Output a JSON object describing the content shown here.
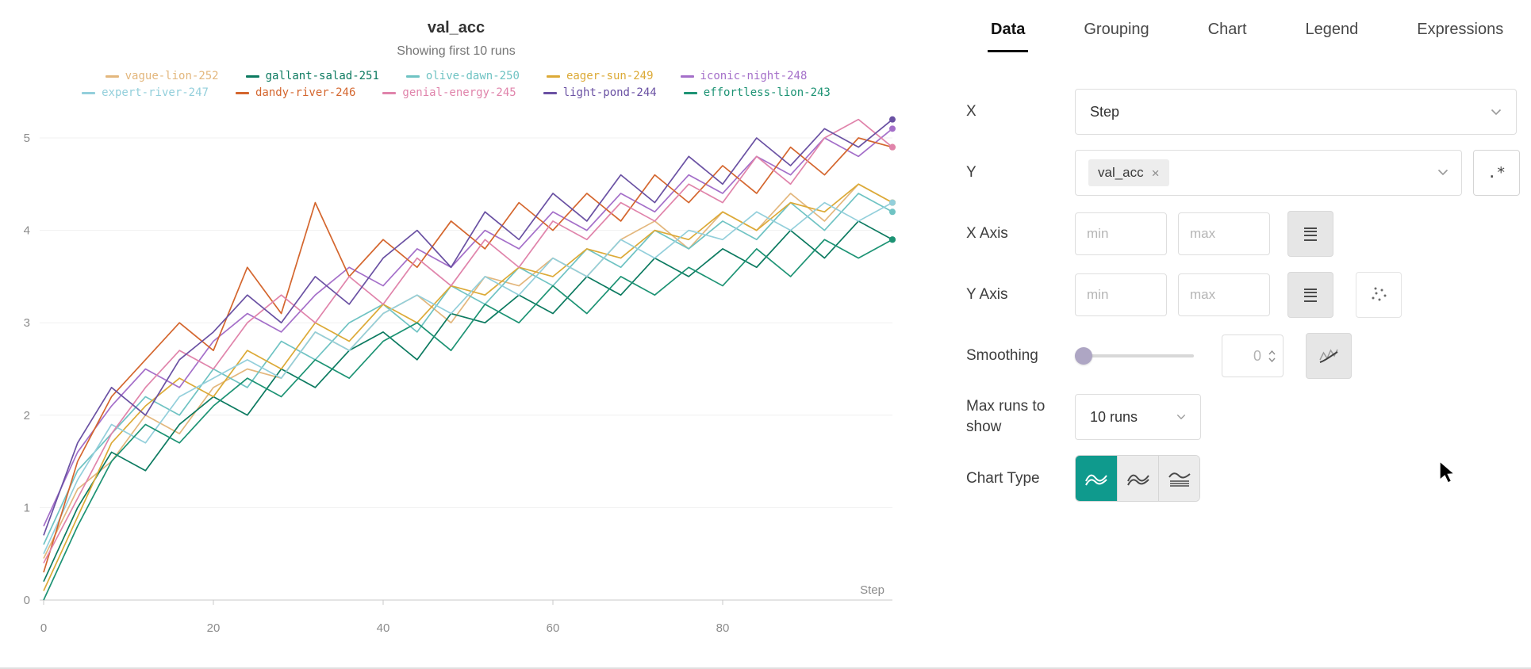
{
  "chart_data": {
    "type": "line",
    "title": "val_acc",
    "subtitle": "Showing first 10 runs",
    "xlabel": "Step",
    "ylabel": "",
    "xlim": [
      0,
      100
    ],
    "ylim": [
      0,
      5.3
    ],
    "x_ticks": [
      0,
      20,
      40,
      60,
      80
    ],
    "y_ticks": [
      0,
      1,
      2,
      3,
      4,
      5
    ],
    "grid": "horizontal",
    "legend_position": "top",
    "x": [
      0,
      4,
      8,
      12,
      16,
      20,
      24,
      28,
      32,
      36,
      40,
      44,
      48,
      52,
      56,
      60,
      64,
      68,
      72,
      76,
      80,
      84,
      88,
      92,
      96,
      100
    ],
    "series": [
      {
        "name": "vague-lion-252",
        "color": "#e3b77d",
        "values": [
          0.45,
          1.2,
          1.5,
          2.0,
          1.8,
          2.3,
          2.5,
          2.4,
          2.9,
          2.7,
          3.1,
          3.3,
          3.0,
          3.5,
          3.4,
          3.7,
          3.5,
          3.9,
          4.1,
          3.8,
          4.2,
          4.0,
          4.4,
          4.1,
          4.5,
          4.3
        ]
      },
      {
        "name": "gallant-salad-251",
        "color": "#0c7a60",
        "values": [
          0.2,
          1.0,
          1.6,
          1.4,
          1.9,
          2.2,
          2.0,
          2.5,
          2.3,
          2.7,
          2.9,
          2.6,
          3.1,
          3.0,
          3.3,
          3.1,
          3.5,
          3.3,
          3.7,
          3.5,
          3.8,
          3.6,
          4.0,
          3.7,
          4.1,
          3.9
        ]
      },
      {
        "name": "olive-dawn-250",
        "color": "#6fc3c3",
        "values": [
          0.6,
          1.4,
          1.8,
          2.2,
          2.0,
          2.5,
          2.3,
          2.8,
          2.6,
          3.0,
          3.2,
          2.9,
          3.4,
          3.2,
          3.6,
          3.4,
          3.8,
          3.6,
          4.0,
          3.8,
          4.1,
          3.9,
          4.3,
          4.0,
          4.4,
          4.2
        ]
      },
      {
        "name": "eager-sun-249",
        "color": "#dcaa37",
        "values": [
          0.1,
          0.9,
          1.7,
          2.1,
          2.4,
          2.2,
          2.7,
          2.5,
          3.0,
          2.8,
          3.2,
          3.0,
          3.4,
          3.3,
          3.6,
          3.5,
          3.8,
          3.7,
          4.0,
          3.9,
          4.2,
          4.0,
          4.3,
          4.2,
          4.5,
          4.3
        ]
      },
      {
        "name": "iconic-night-248",
        "color": "#a46fc9",
        "values": [
          0.8,
          1.6,
          2.1,
          2.5,
          2.3,
          2.8,
          3.1,
          2.9,
          3.3,
          3.6,
          3.4,
          3.8,
          3.6,
          4.0,
          3.8,
          4.2,
          4.0,
          4.4,
          4.2,
          4.6,
          4.4,
          4.8,
          4.6,
          5.0,
          4.8,
          5.1
        ]
      },
      {
        "name": "expert-river-247",
        "color": "#93cfdb",
        "values": [
          0.5,
          1.3,
          1.9,
          1.7,
          2.2,
          2.4,
          2.6,
          2.4,
          2.9,
          2.7,
          3.1,
          3.3,
          3.1,
          3.5,
          3.3,
          3.7,
          3.5,
          3.9,
          3.7,
          4.0,
          3.9,
          4.2,
          4.0,
          4.3,
          4.1,
          4.3
        ]
      },
      {
        "name": "dandy-river-246",
        "color": "#d4662e",
        "values": [
          0.3,
          1.5,
          2.2,
          2.6,
          3.0,
          2.7,
          3.6,
          3.1,
          4.3,
          3.5,
          3.9,
          3.6,
          4.1,
          3.8,
          4.3,
          4.0,
          4.4,
          4.1,
          4.6,
          4.3,
          4.7,
          4.4,
          4.9,
          4.6,
          5.0,
          4.9
        ]
      },
      {
        "name": "genial-energy-245",
        "color": "#e084ab",
        "values": [
          0.4,
          1.1,
          1.8,
          2.3,
          2.7,
          2.5,
          3.0,
          3.3,
          3.0,
          3.5,
          3.2,
          3.7,
          3.4,
          3.9,
          3.6,
          4.1,
          3.9,
          4.3,
          4.1,
          4.5,
          4.3,
          4.8,
          4.5,
          5.0,
          5.2,
          4.9
        ]
      },
      {
        "name": "light-pond-244",
        "color": "#6a51a3",
        "values": [
          0.7,
          1.7,
          2.3,
          2.0,
          2.6,
          2.9,
          3.3,
          3.0,
          3.5,
          3.2,
          3.7,
          4.0,
          3.6,
          4.2,
          3.9,
          4.4,
          4.1,
          4.6,
          4.3,
          4.8,
          4.5,
          5.0,
          4.7,
          5.1,
          4.9,
          5.2
        ]
      },
      {
        "name": "effortless-lion-243",
        "color": "#1d9374",
        "values": [
          0.0,
          0.8,
          1.5,
          1.9,
          1.7,
          2.1,
          2.4,
          2.2,
          2.6,
          2.4,
          2.8,
          3.0,
          2.7,
          3.2,
          3.0,
          3.4,
          3.1,
          3.5,
          3.3,
          3.6,
          3.4,
          3.8,
          3.5,
          3.9,
          3.7,
          3.9
        ]
      }
    ]
  },
  "panel": {
    "tabs": [
      {
        "label": "Data",
        "active": true
      },
      {
        "label": "Grouping",
        "active": false
      },
      {
        "label": "Chart",
        "active": false
      },
      {
        "label": "Legend",
        "active": false
      },
      {
        "label": "Expressions",
        "active": false
      }
    ],
    "fields": {
      "x": {
        "label": "X",
        "value": "Step"
      },
      "y": {
        "label": "Y",
        "selected": "val_acc",
        "remove_label": "×",
        "regex_button": ".*"
      },
      "x_axis": {
        "label": "X Axis",
        "min_placeholder": "min",
        "max_placeholder": "max"
      },
      "y_axis": {
        "label": "Y Axis",
        "min_placeholder": "min",
        "max_placeholder": "max"
      },
      "smoothing": {
        "label": "Smoothing",
        "value": "0"
      },
      "max_runs": {
        "label": "Max runs to show",
        "value": "10 runs"
      },
      "chart_type": {
        "label": "Chart Type",
        "selected": "line"
      }
    }
  },
  "colors": {
    "accent_teal": "#0f9a8d",
    "tab_active": "#111111",
    "grid_line": "#f0f0f0",
    "axis_line": "#c9c9c9",
    "muted_text": "#8c8c8c"
  }
}
